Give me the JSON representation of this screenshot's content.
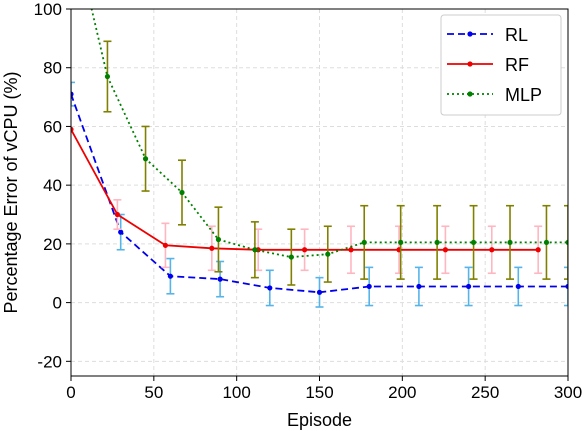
{
  "chart_data": {
    "type": "line",
    "xlabel": "Episode",
    "ylabel": "Percentage Error of vCPU (%)",
    "xlim": [
      0,
      300
    ],
    "ylim": [
      -25,
      100
    ],
    "xticks": [
      0,
      50,
      100,
      150,
      200,
      250,
      300
    ],
    "yticks": [
      -20,
      0,
      20,
      40,
      60,
      80,
      100
    ],
    "grid": true,
    "legend_position": "top-right",
    "series": [
      {
        "name": "RL",
        "color": "#0000ee",
        "errorbar_color": "#56b4e9",
        "line_style": "dashed",
        "points": [
          {
            "x": 0,
            "y": 71,
            "err": 4
          },
          {
            "x": 30,
            "y": 24,
            "err": 6
          },
          {
            "x": 60,
            "y": 9,
            "err": 6
          },
          {
            "x": 90,
            "y": 8,
            "err": 6
          },
          {
            "x": 120,
            "y": 5,
            "err": 6
          },
          {
            "x": 150,
            "y": 3.5,
            "err": 5
          },
          {
            "x": 180,
            "y": 5.5,
            "err": 6.5
          },
          {
            "x": 210,
            "y": 5.5,
            "err": 6.5
          },
          {
            "x": 240,
            "y": 5.5,
            "err": 6.5
          },
          {
            "x": 270,
            "y": 5.5,
            "err": 6.5
          },
          {
            "x": 300,
            "y": 5.5,
            "err": 6.5
          }
        ]
      },
      {
        "name": "RF",
        "color": "#ee0000",
        "errorbar_color": "#ffb6c1",
        "line_style": "solid",
        "points": [
          {
            "x": 0,
            "y": 59,
            "err": 0
          },
          {
            "x": 28,
            "y": 30,
            "err": 5
          },
          {
            "x": 57,
            "y": 19.5,
            "err": 7.5
          },
          {
            "x": 85,
            "y": 18.5,
            "err": 7.5
          },
          {
            "x": 113,
            "y": 18,
            "err": 7
          },
          {
            "x": 141,
            "y": 18,
            "err": 7
          },
          {
            "x": 169,
            "y": 18,
            "err": 8
          },
          {
            "x": 198,
            "y": 18,
            "err": 8
          },
          {
            "x": 226,
            "y": 18,
            "err": 8
          },
          {
            "x": 254,
            "y": 18,
            "err": 8
          },
          {
            "x": 282,
            "y": 18,
            "err": 8
          }
        ]
      },
      {
        "name": "MLP",
        "color": "#008000",
        "errorbar_color": "#808000",
        "line_style": "dotted",
        "points": [
          {
            "x": 0,
            "y": 130,
            "err": 0
          },
          {
            "x": 22,
            "y": 77,
            "err": 12
          },
          {
            "x": 45,
            "y": 49,
            "err": 11
          },
          {
            "x": 67,
            "y": 37.5,
            "err": 11
          },
          {
            "x": 89,
            "y": 21.5,
            "err": 11
          },
          {
            "x": 111,
            "y": 18,
            "err": 9.5
          },
          {
            "x": 133,
            "y": 15.5,
            "err": 9.5
          },
          {
            "x": 155,
            "y": 16.5,
            "err": 9.5
          },
          {
            "x": 177,
            "y": 20.5,
            "err": 12.5
          },
          {
            "x": 199,
            "y": 20.5,
            "err": 12.5
          },
          {
            "x": 221,
            "y": 20.5,
            "err": 12.5
          },
          {
            "x": 243,
            "y": 20.5,
            "err": 12.5
          },
          {
            "x": 265,
            "y": 20.5,
            "err": 12.5
          },
          {
            "x": 287,
            "y": 20.5,
            "err": 12.5
          },
          {
            "x": 300,
            "y": 20.5,
            "err": 12.5
          }
        ]
      }
    ]
  }
}
